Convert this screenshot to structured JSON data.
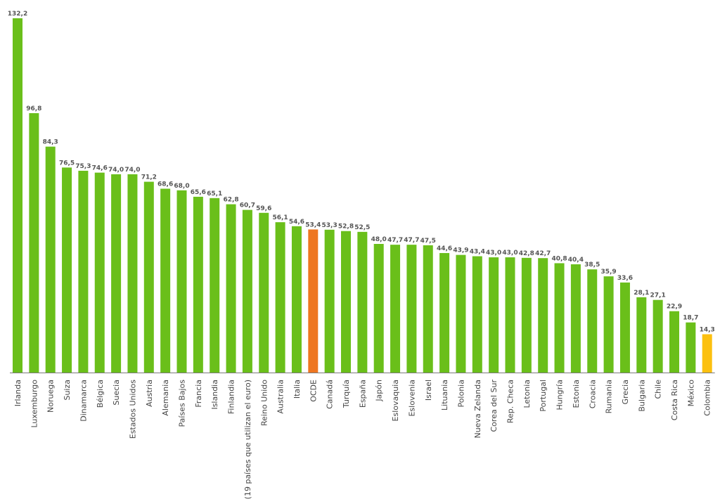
{
  "chart_data": {
    "type": "bar",
    "title": "",
    "xlabel": "",
    "ylabel": "",
    "ylim": [
      0,
      132.2
    ],
    "grid": false,
    "legend": "none",
    "categories": [
      "Irlanda",
      "Luxemburgo",
      "Noruega",
      "Suiza",
      "Dinamarca",
      "Bélgica",
      "Suecia",
      "Estados Unidos",
      "Austria",
      "Alemania",
      "Países Bajos",
      "Francia",
      "Islandia",
      "Finlandia",
      "(19 países que utilizan el euro)",
      "Reino Unido",
      "Australia",
      "Italia",
      "OCDE",
      "Canadá",
      "Turquía",
      "España",
      "Japón",
      "Eslovaquia",
      "Eslovenia",
      "Israel",
      "Lituania",
      "Polonia",
      "Nueva Zelanda",
      "Corea del Sur",
      "Rep. Checa",
      "Letonia",
      "Portugal",
      "Hungría",
      "Estonia",
      "Croacia",
      "Rumania",
      "Grecia",
      "Bulgaria",
      "Chile",
      "Costa Rica",
      "México",
      "Colombia"
    ],
    "values": [
      132.2,
      96.8,
      84.3,
      76.5,
      75.3,
      74.6,
      74.0,
      74.0,
      71.2,
      68.6,
      68.0,
      65.6,
      65.1,
      62.8,
      60.7,
      59.6,
      56.1,
      54.6,
      53.4,
      53.3,
      52.8,
      52.5,
      48.0,
      47.7,
      47.7,
      47.5,
      44.6,
      43.9,
      43.4,
      43.0,
      43.0,
      42.8,
      42.7,
      40.8,
      40.4,
      38.5,
      35.9,
      33.6,
      28.1,
      27.1,
      22.9,
      18.7,
      14.3
    ],
    "value_labels": [
      "132,2",
      "96,8",
      "84,3",
      "76,5",
      "75,3",
      "74,6",
      "74,0",
      "74,0",
      "71,2",
      "68,6",
      "68,0",
      "65,6",
      "65,1",
      "62,8",
      "60,7",
      "59,6",
      "56,1",
      "54,6",
      "53,4",
      "53,3",
      "52,8",
      "52,5",
      "48,0",
      "47,7",
      "47,7",
      "47,5",
      "44,6",
      "43,9",
      "43,4",
      "43,0",
      "43,0",
      "42,8",
      "42,7",
      "40,8",
      "40,4",
      "38,5",
      "35,9",
      "33,6",
      "28,1",
      "27,1",
      "22,9",
      "18,7",
      "14,3"
    ],
    "colors": {
      "default": "#6abf1a",
      "OCDE": "#ee7621",
      "Colombia": "#fcc00f",
      "axis": "#7a7a7a",
      "value_label": "#555555",
      "category_label": "#444444"
    }
  }
}
